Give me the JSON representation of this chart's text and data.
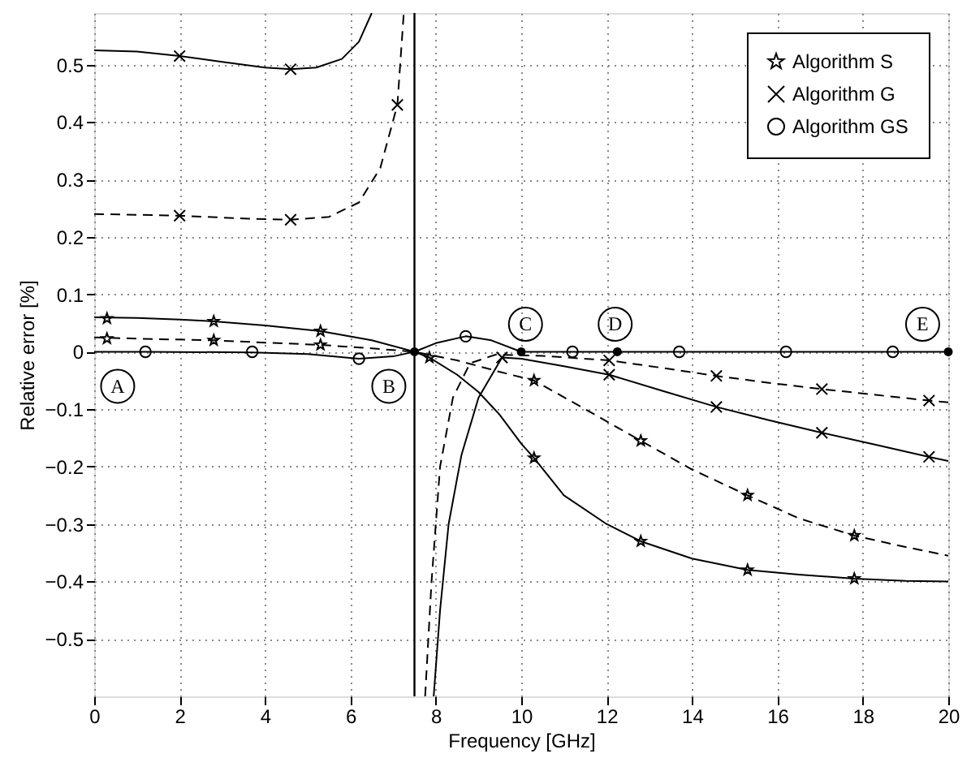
{
  "chart_data": {
    "type": "line",
    "xlabel": "Frequency [GHz]",
    "ylabel": "Relative error [%]",
    "xlim": [
      0,
      20
    ],
    "ylim": [
      -0.6,
      0.59
    ],
    "xticks": [
      0,
      2,
      4,
      6,
      8,
      10,
      12,
      14,
      16,
      18,
      20
    ],
    "yticks": [
      -0.5,
      -0.4,
      -0.3,
      -0.2,
      -0.1,
      0,
      0.1,
      0.2,
      0.3,
      0.4,
      0.5
    ],
    "grid": true,
    "legend": "top right",
    "series": [
      {
        "line_style": "solid",
        "color": "#000000",
        "x": [
          0,
          1,
          2,
          2.8,
          4,
          5.3,
          6.5,
          7.5,
          7.85,
          8.5,
          9,
          9.5,
          10,
          10.3,
          11,
          12,
          12.8,
          14,
          15.3,
          16.5,
          17.8,
          19,
          20
        ],
        "values": [
          0.06,
          0.059,
          0.056,
          0.053,
          0.046,
          0.036,
          0.02,
          0,
          -0.01,
          -0.04,
          -0.07,
          -0.11,
          -0.16,
          -0.185,
          -0.25,
          -0.3,
          -0.33,
          -0.36,
          -0.38,
          -0.388,
          -0.395,
          -0.399,
          -0.4
        ]
      },
      {
        "line_style": "dashed",
        "color": "#000000",
        "x": [
          0,
          1.5,
          2.8,
          4,
          5.3,
          6.5,
          7.5,
          8.5,
          9.5,
          10.3,
          11.5,
          12.8,
          14,
          15.3,
          16.5,
          17.8,
          19,
          20
        ],
        "values": [
          0.025,
          0.022,
          0.02,
          0.016,
          0.012,
          0.006,
          0,
          -0.015,
          -0.035,
          -0.05,
          -0.1,
          -0.155,
          -0.205,
          -0.25,
          -0.29,
          -0.32,
          -0.34,
          -0.355
        ]
      },
      {
        "line_style": "solid",
        "color": "#000000",
        "x": [
          0,
          1,
          2,
          3,
          4,
          4.6,
          5.2,
          5.8,
          6.2,
          6.5,
          7,
          7.95,
          8.1,
          8.3,
          8.6,
          9,
          9.55,
          10,
          11,
          12.06,
          13.3,
          14.57,
          15.8,
          17.04,
          18.3,
          19.55,
          20
        ],
        "values": [
          0.525,
          0.523,
          0.515,
          0.505,
          0.495,
          0.492,
          0.495,
          0.51,
          0.54,
          0.59,
          null,
          -0.6,
          -0.45,
          -0.3,
          -0.18,
          -0.08,
          -0.01,
          -0.012,
          -0.025,
          -0.04,
          -0.068,
          -0.096,
          -0.119,
          -0.141,
          -0.162,
          -0.183,
          -0.19
        ]
      },
      {
        "line_style": "dashed",
        "color": "#000000",
        "x": [
          0,
          2,
          3.5,
          4.6,
          5.5,
          6.2,
          6.7,
          7.1,
          7.25,
          7.5,
          7.75,
          7.9,
          8.1,
          8.4,
          8.8,
          9.4,
          10.5,
          12.06,
          13.3,
          14.57,
          15.8,
          17.04,
          18.3,
          19.55,
          20
        ],
        "values": [
          0.24,
          0.237,
          0.232,
          0.23,
          0.235,
          0.26,
          0.32,
          0.43,
          0.59,
          null,
          -0.6,
          -0.4,
          -0.2,
          -0.08,
          -0.02,
          -0.005,
          -0.007,
          -0.015,
          -0.028,
          -0.042,
          -0.054,
          -0.065,
          -0.075,
          -0.085,
          -0.088
        ]
      },
      {
        "line_style": "solid",
        "color": "#000000",
        "x": [
          0,
          1.2,
          3.7,
          5,
          6.2,
          7,
          7.5,
          8,
          8.7,
          9.3,
          10,
          20
        ],
        "values": [
          0,
          0,
          -0.001,
          -0.004,
          -0.012,
          -0.008,
          0,
          0.015,
          0.027,
          0.02,
          0,
          0
        ]
      },
      {
        "type": "scatter",
        "name": "Algorithm S",
        "marker": "star",
        "color": "#000000",
        "x": [
          0.3,
          2.8,
          5.3,
          7.85,
          10.3,
          12.8,
          15.3,
          17.8,
          0.3,
          2.8,
          5.3,
          10.3,
          12.8,
          15.3,
          17.8
        ],
        "values": [
          0.058,
          0.053,
          0.036,
          -0.01,
          -0.185,
          -0.33,
          -0.38,
          -0.395,
          0.023,
          0.02,
          0.012,
          -0.05,
          -0.155,
          -0.25,
          -0.32
        ]
      },
      {
        "type": "scatter",
        "name": "Algorithm G",
        "marker": "cross",
        "color": "#000000",
        "x": [
          2,
          4.6,
          9.55,
          12.06,
          14.57,
          17.04,
          19.55,
          2,
          4.6,
          7.1,
          12.06,
          14.57,
          17.04,
          19.55
        ],
        "values": [
          0.515,
          0.492,
          -0.01,
          -0.04,
          -0.096,
          -0.141,
          -0.183,
          0.237,
          0.23,
          0.43,
          -0.015,
          -0.042,
          -0.065,
          -0.085
        ]
      },
      {
        "type": "scatter",
        "name": "Algorithm GS",
        "marker": "circle",
        "color": "#000000",
        "x": [
          1.2,
          3.7,
          6.2,
          8.7,
          11.2,
          13.7,
          16.2,
          18.7
        ],
        "values": [
          0,
          0,
          -0.012,
          0.027,
          0,
          0,
          0,
          0
        ]
      },
      {
        "type": "scatter",
        "marker": "circle",
        "color": "#000000",
        "x": [
          7.5,
          10,
          12.25,
          20
        ],
        "values": [
          0,
          0,
          0,
          0
        ]
      }
    ],
    "ref_lines": [
      {
        "axis": "x",
        "value": 7.5,
        "color": "#000000",
        "line_style": "solid"
      }
    ],
    "annotations": [
      {
        "text": "A",
        "x": 0.55,
        "y": -0.06
      },
      {
        "text": "B",
        "x": 6.9,
        "y": -0.06
      },
      {
        "text": "C",
        "x": 10.1,
        "y": 0.048
      },
      {
        "text": "D",
        "x": 12.2,
        "y": 0.048
      },
      {
        "text": "E",
        "x": 19.4,
        "y": 0.048
      }
    ]
  }
}
